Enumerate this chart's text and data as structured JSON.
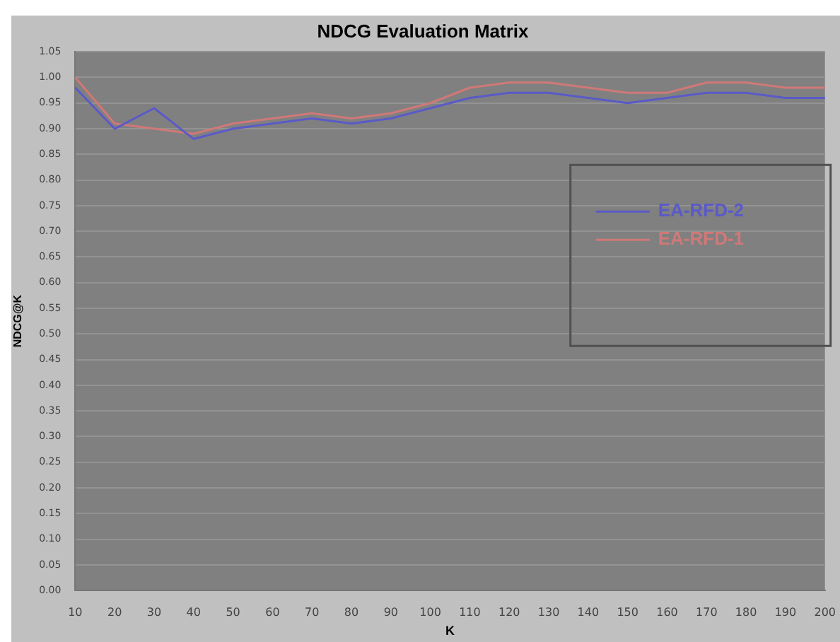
{
  "chart_data": {
    "type": "line",
    "title": "NDCG Evaluation Matrix",
    "xlabel": "K",
    "ylabel": "NDCG@K",
    "categories": [
      "10",
      "20",
      "30",
      "40",
      "50",
      "60",
      "70",
      "80",
      "90",
      "100",
      "110",
      "120",
      "130",
      "140",
      "150",
      "160",
      "170",
      "180",
      "190",
      "200"
    ],
    "series": [
      {
        "name": "EA-RFD-2",
        "color": "#5a5ac8",
        "values": [
          0.98,
          0.9,
          0.94,
          0.88,
          0.9,
          0.91,
          0.92,
          0.91,
          0.92,
          0.94,
          0.96,
          0.97,
          0.97,
          0.96,
          0.95,
          0.96,
          0.97,
          0.97,
          0.96,
          0.96
        ]
      },
      {
        "name": "EA-RFD-1",
        "color": "#d07878",
        "values": [
          1.0,
          0.91,
          0.9,
          0.89,
          0.91,
          0.92,
          0.93,
          0.92,
          0.93,
          0.95,
          0.98,
          0.99,
          0.99,
          0.98,
          0.97,
          0.97,
          0.99,
          0.99,
          0.98,
          0.98
        ]
      }
    ],
    "ylim": [
      0,
      1.05
    ],
    "yticks": [
      {
        "value": 0,
        "label": "0.00"
      },
      0.05,
      {
        "value": 0.1,
        "label": "0.10"
      },
      0.15,
      {
        "value": 0.2,
        "label": "0.20"
      },
      0.25,
      {
        "value": 0.3,
        "label": "0.30"
      },
      0.35,
      {
        "value": 0.4,
        "label": "0.40"
      },
      0.45,
      {
        "value": 0.5,
        "label": "0.50"
      },
      0.55,
      {
        "value": 0.6,
        "label": "0.60"
      },
      0.65,
      {
        "value": 0.7,
        "label": "0.70"
      },
      0.75,
      {
        "value": 0.8,
        "label": "0.80"
      },
      0.85,
      {
        "value": 0.9,
        "label": "0.90"
      },
      0.95,
      {
        "value": 1,
        "label": "1.00"
      },
      1.05
    ],
    "grid": "y",
    "legend": "right",
    "marker": "none",
    "line_style": "solid"
  }
}
